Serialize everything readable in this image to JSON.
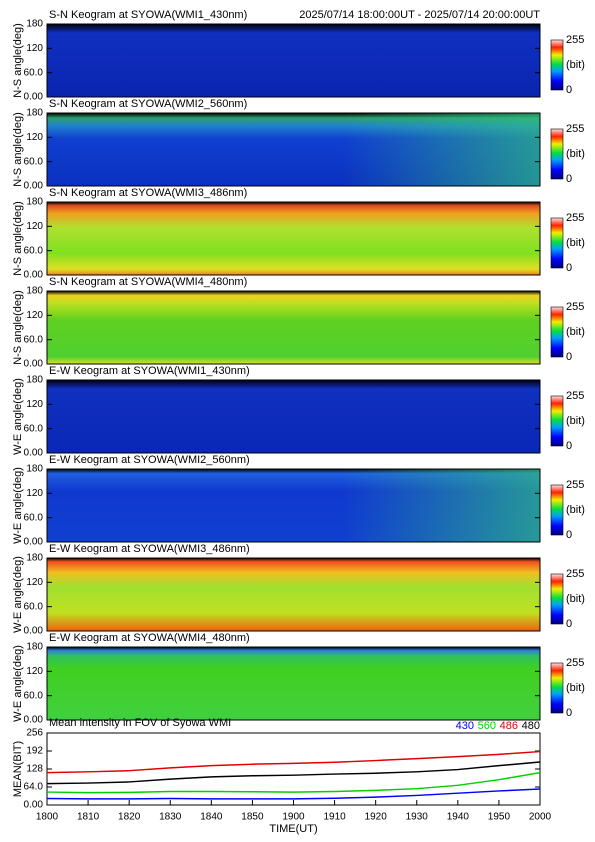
{
  "chart_data": [
    {
      "type": "heatmap",
      "title": "S-N Keogram at SYOWA(WMI1_430nm)",
      "subtitle": "2025/07/14 18:00:00UT - 2025/07/14 20:00:00UT",
      "ylabel": "N-S angle(deg)",
      "ylim": [
        0,
        180
      ],
      "yticks": [
        {
          "value": 0,
          "label": "0.00"
        },
        {
          "value": 60,
          "label": "60.0"
        },
        120,
        180
      ],
      "colorbar_ticks": [
        0,
        255
      ],
      "colorbar_label": "(bit)"
    },
    {
      "type": "heatmap",
      "title": "S-N Keogram at SYOWA(WMI2_560nm)",
      "ylabel": "N-S angle(deg)",
      "ylim": [
        0,
        180
      ],
      "yticks": [
        {
          "value": 0,
          "label": "0.00"
        },
        {
          "value": 60,
          "label": "60.0"
        },
        120,
        180
      ],
      "colorbar_ticks": [
        0,
        255
      ],
      "colorbar_label": "(bit)"
    },
    {
      "type": "heatmap",
      "title": "S-N Keogram at SYOWA(WMI3_486nm)",
      "ylabel": "N-S angle(deg)",
      "ylim": [
        0,
        180
      ],
      "yticks": [
        {
          "value": 0,
          "label": "0.00"
        },
        {
          "value": 60,
          "label": "60.0"
        },
        120,
        180
      ],
      "colorbar_ticks": [
        0,
        255
      ],
      "colorbar_label": "(bit)"
    },
    {
      "type": "heatmap",
      "title": "S-N Keogram at SYOWA(WMI4_480nm)",
      "ylabel": "N-S angle(deg)",
      "ylim": [
        0,
        180
      ],
      "yticks": [
        {
          "value": 0,
          "label": "0.00"
        },
        {
          "value": 60,
          "label": "60.0"
        },
        120,
        180
      ],
      "colorbar_ticks": [
        0,
        255
      ],
      "colorbar_label": "(bit)"
    },
    {
      "type": "heatmap",
      "title": "E-W Keogram at SYOWA(WMI1_430nm)",
      "ylabel": "W-E angle(deg)",
      "ylim": [
        0,
        180
      ],
      "yticks": [
        {
          "value": 0,
          "label": "0.00"
        },
        {
          "value": 60,
          "label": "60.0"
        },
        120,
        180
      ],
      "colorbar_ticks": [
        0,
        255
      ],
      "colorbar_label": "(bit)"
    },
    {
      "type": "heatmap",
      "title": "E-W Keogram at SYOWA(WMI2_560nm)",
      "ylabel": "W-E angle(deg)",
      "ylim": [
        0,
        180
      ],
      "yticks": [
        {
          "value": 0,
          "label": "0.00"
        },
        {
          "value": 60,
          "label": "60.0"
        },
        120,
        180
      ],
      "colorbar_ticks": [
        0,
        255
      ],
      "colorbar_label": "(bit)"
    },
    {
      "type": "heatmap",
      "title": "E-W Keogram at SYOWA(WMI3_486nm)",
      "ylabel": "W-E angle(deg)",
      "ylim": [
        0,
        180
      ],
      "yticks": [
        {
          "value": 0,
          "label": "0.00"
        },
        {
          "value": 60,
          "label": "60.0"
        },
        120,
        180
      ],
      "colorbar_ticks": [
        0,
        255
      ],
      "colorbar_label": "(bit)"
    },
    {
      "type": "heatmap",
      "title": "E-W Keogram at SYOWA(WMI4_480nm)",
      "ylabel": "W-E angle(deg)",
      "ylim": [
        0,
        180
      ],
      "yticks": [
        {
          "value": 0,
          "label": "0.00"
        },
        {
          "value": 60,
          "label": "60.0"
        },
        120,
        180
      ],
      "colorbar_ticks": [
        0,
        255
      ],
      "colorbar_label": "(bit)"
    },
    {
      "type": "line",
      "title": "Mean intensity in FOV of Syowa WMI",
      "ylabel": "MEAN(BIT)",
      "xlabel": "TIME(UT)",
      "ylim": [
        0,
        256
      ],
      "yticks": [
        {
          "value": 0,
          "label": "0.00"
        },
        {
          "value": 64,
          "label": "64.0"
        },
        128,
        192,
        256
      ],
      "xlim": [
        0,
        120
      ],
      "xticks": [
        {
          "value": 0,
          "label": "1800"
        },
        {
          "value": 10,
          "label": "1810"
        },
        {
          "value": 20,
          "label": "1820"
        },
        {
          "value": 30,
          "label": "1830"
        },
        {
          "value": 40,
          "label": "1840"
        },
        {
          "value": 50,
          "label": "1850"
        },
        {
          "value": 60,
          "label": "1900"
        },
        {
          "value": 70,
          "label": "1910"
        },
        {
          "value": 80,
          "label": "1920"
        },
        {
          "value": 90,
          "label": "1930"
        },
        {
          "value": 100,
          "label": "1940"
        },
        {
          "value": 110,
          "label": "1950"
        },
        {
          "value": 120,
          "label": "2000"
        }
      ],
      "x": [
        0,
        10,
        20,
        30,
        40,
        50,
        60,
        70,
        80,
        90,
        100,
        110,
        120
      ],
      "series": [
        {
          "name": "430",
          "color": "#0000ff",
          "values": [
            23,
            22,
            22,
            23,
            22,
            22,
            22,
            24,
            28,
            34,
            42,
            50,
            57
          ]
        },
        {
          "name": "560",
          "color": "#00d000",
          "values": [
            46,
            44,
            45,
            48,
            48,
            47,
            46,
            48,
            52,
            58,
            70,
            90,
            115
          ]
        },
        {
          "name": "486",
          "color": "#e00000",
          "values": [
            115,
            118,
            122,
            132,
            140,
            145,
            148,
            152,
            158,
            165,
            172,
            180,
            190
          ]
        },
        {
          "name": "480",
          "color": "#000000",
          "values": [
            76,
            78,
            82,
            92,
            100,
            104,
            106,
            110,
            113,
            118,
            126,
            140,
            153
          ]
        }
      ]
    }
  ]
}
